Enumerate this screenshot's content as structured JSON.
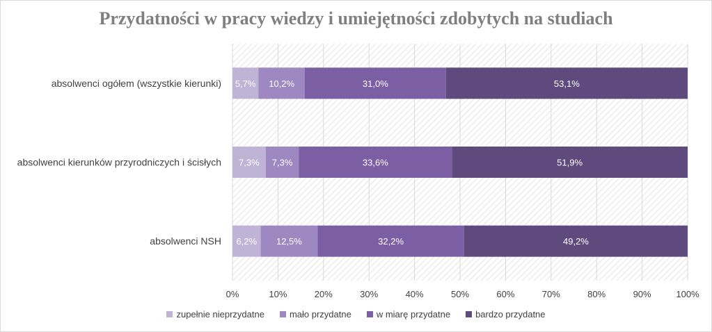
{
  "chart_data": {
    "type": "bar",
    "orientation": "horizontal",
    "stacked": true,
    "title": "Przydatności w pracy wiedzy i umiejętności zdobytych na studiach",
    "categories": [
      "absolwenci ogółem (wszystkie kierunki)",
      "absolwenci kierunków przyrodniczych i ścisłych",
      "absolwenci NSH"
    ],
    "series": [
      {
        "name": "zupełnie nieprzydatne",
        "color": "#bfb3d6",
        "values": [
          5.7,
          7.3,
          6.2
        ],
        "labels": [
          "5,7%",
          "7,3%",
          "6,2%"
        ]
      },
      {
        "name": "mało przydatne",
        "color": "#9e88c2",
        "values": [
          10.2,
          7.3,
          12.5
        ],
        "labels": [
          "10,2%",
          "7,3%",
          "12,5%"
        ]
      },
      {
        "name": "w miarę przydatne",
        "color": "#7b5ea3",
        "values": [
          31.0,
          33.6,
          32.2
        ],
        "labels": [
          "31,0%",
          "33,6%",
          "32,2%"
        ]
      },
      {
        "name": "bardzo przydatne",
        "color": "#5f4a7e",
        "values": [
          53.1,
          51.9,
          49.2
        ],
        "labels": [
          "53,1%",
          "51,9%",
          "49,2%"
        ]
      }
    ],
    "xlim": [
      0,
      100
    ],
    "x_ticks": [
      "0%",
      "10%",
      "20%",
      "30%",
      "40%",
      "50%",
      "60%",
      "70%",
      "80%",
      "90%",
      "100%"
    ],
    "grid": true,
    "legend_position": "bottom"
  }
}
